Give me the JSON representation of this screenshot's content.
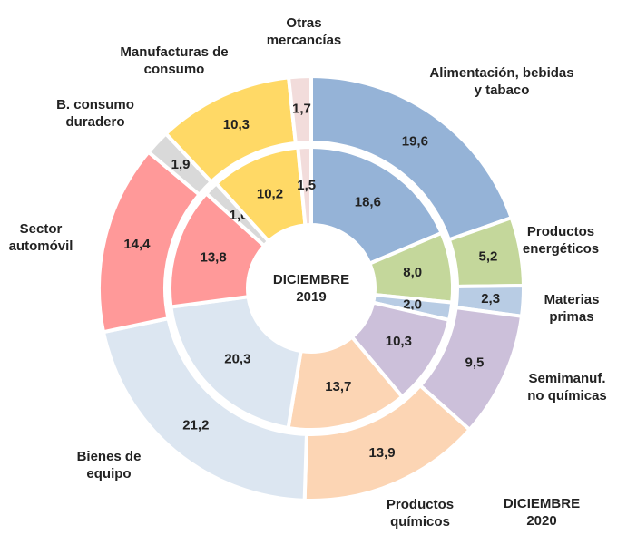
{
  "chart_data": {
    "type": "donut",
    "categories": [
      "Alimentación, bebidas y tabaco",
      "Productos energéticos",
      "Materias primas",
      "Semimanuf. no químicas",
      "Productos químicos",
      "Bienes de equipo",
      "Sector automóvil",
      "B. consumo duradero",
      "Manufacturas de consumo",
      "Otras mercancías"
    ],
    "colors": [
      "#95b3d7",
      "#c4d79b",
      "#b8cce4",
      "#ccc0da",
      "#fcd5b4",
      "#dce6f1",
      "#ff9999",
      "#d9d9d9",
      "#ffd966",
      "#f2dcdb"
    ],
    "series": [
      {
        "name": "DICIEMBRE 2019",
        "values": [
          18.6,
          8.0,
          2.0,
          10.3,
          13.7,
          20.3,
          13.8,
          1.6,
          10.2,
          1.5
        ],
        "value_labels": [
          "18,6",
          "8,0",
          "2,0",
          "10,3",
          "13,7",
          "20,3",
          "13,8",
          "1,6",
          "10,2",
          "1,5"
        ]
      },
      {
        "name": "DICIEMBRE 2020",
        "values": [
          19.6,
          5.2,
          2.3,
          9.5,
          13.9,
          21.2,
          14.4,
          1.9,
          10.3,
          1.7
        ],
        "value_labels": [
          "19,6",
          "5,2",
          "2,3",
          "9,5",
          "13,9",
          "21,2",
          "14,4",
          "1,9",
          "10,3",
          "1,7"
        ]
      }
    ]
  }
}
